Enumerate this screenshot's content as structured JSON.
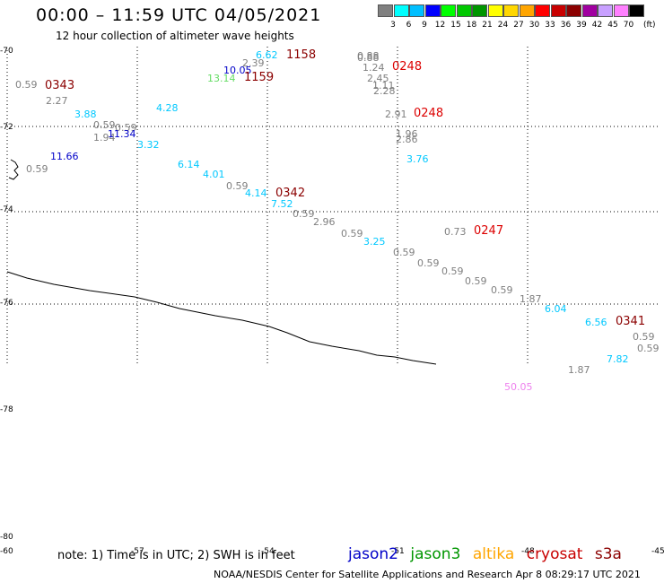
{
  "title": "00:00 – 11:59 UTC 04/05/2021",
  "subtitle": "12 hour collection of altimeter wave heights",
  "scale": {
    "unit": "(ft)",
    "entries": [
      {
        "label": "",
        "color": "#808080"
      },
      {
        "label": "3",
        "color": "#00ffff"
      },
      {
        "label": "6",
        "color": "#00bfff"
      },
      {
        "label": "9",
        "color": "#0000ff"
      },
      {
        "label": "12",
        "color": "#00ff00"
      },
      {
        "label": "15",
        "color": "#00c800"
      },
      {
        "label": "18",
        "color": "#009600"
      },
      {
        "label": "21",
        "color": "#ffff00"
      },
      {
        "label": "24",
        "color": "#ffd700"
      },
      {
        "label": "27",
        "color": "#ffa500"
      },
      {
        "label": "30",
        "color": "#ff0000"
      },
      {
        "label": "33",
        "color": "#c80000"
      },
      {
        "label": "36",
        "color": "#8b0000"
      },
      {
        "label": "39",
        "color": "#a000a0"
      },
      {
        "label": "42",
        "color": "#c8a0ff"
      },
      {
        "label": "45",
        "color": "#ff80ff"
      },
      {
        "label": "70",
        "color": "#000000"
      }
    ]
  },
  "latitude_labels": [
    "-70",
    "-72",
    "-74",
    "-76",
    "-78",
    "-80"
  ],
  "longitude_labels": [
    "-60",
    "-57",
    "-54",
    "-51",
    "-48",
    "-45"
  ],
  "observations": [
    {
      "text": "0.59",
      "color": "#808080"
    },
    {
      "text": "2.27",
      "color": "#808080"
    },
    {
      "text": "3.88",
      "color": "#00c8ff"
    },
    {
      "text": "0.59",
      "color": "#808080"
    },
    {
      "text": "0.59",
      "color": "#808080"
    },
    {
      "text": "1.94",
      "color": "#808080"
    },
    {
      "text": "11.34",
      "color": "#0000c8"
    },
    {
      "text": "3.32",
      "color": "#00c8ff"
    },
    {
      "text": "4.28",
      "color": "#00c8ff"
    },
    {
      "text": "11.66",
      "color": "#0000c8"
    },
    {
      "text": "0.59",
      "color": "#808080"
    },
    {
      "text": "6.14",
      "color": "#00c8ff"
    },
    {
      "text": "4.01",
      "color": "#00c8ff"
    },
    {
      "text": "0.59",
      "color": "#808080"
    },
    {
      "text": "4.14",
      "color": "#00c8ff"
    },
    {
      "text": "7.52",
      "color": "#00c8ff"
    },
    {
      "text": "0.59",
      "color": "#808080"
    },
    {
      "text": "2.96",
      "color": "#808080"
    },
    {
      "text": "0.59",
      "color": "#808080"
    },
    {
      "text": "3.25",
      "color": "#00c8ff"
    },
    {
      "text": "0.59",
      "color": "#808080"
    },
    {
      "text": "0.59",
      "color": "#808080"
    },
    {
      "text": "0.59",
      "color": "#808080"
    },
    {
      "text": "0.59",
      "color": "#808080"
    },
    {
      "text": "0.59",
      "color": "#808080"
    },
    {
      "text": "0.73",
      "color": "#808080"
    },
    {
      "text": "1.87",
      "color": "#808080"
    },
    {
      "text": "6.04",
      "color": "#00c8ff"
    },
    {
      "text": "6.56",
      "color": "#00c8ff"
    },
    {
      "text": "0.59",
      "color": "#808080"
    },
    {
      "text": "0.59",
      "color": "#808080"
    },
    {
      "text": "7.82",
      "color": "#00c8ff"
    },
    {
      "text": "1.87",
      "color": "#808080"
    },
    {
      "text": "50.05",
      "color": "#ee82ee"
    },
    {
      "text": "6.62",
      "color": "#00c8ff"
    },
    {
      "text": "2.39",
      "color": "#808080"
    },
    {
      "text": "10.05",
      "color": "#0000c8"
    },
    {
      "text": "13.14",
      "color": "#64dc64"
    },
    {
      "text": "0.88",
      "color": "#808080"
    },
    {
      "text": "0.88",
      "color": "#808080"
    },
    {
      "text": "1.24",
      "color": "#808080"
    },
    {
      "text": "2.45",
      "color": "#808080"
    },
    {
      "text": "1.11",
      "color": "#808080"
    },
    {
      "text": "2.28",
      "color": "#808080"
    },
    {
      "text": "2.91",
      "color": "#808080"
    },
    {
      "text": "1.96",
      "color": "#808080"
    },
    {
      "text": "2.86",
      "color": "#808080"
    },
    {
      "text": "3.76",
      "color": "#00c8ff"
    }
  ],
  "pass_times": [
    {
      "text": "0343",
      "color": "#8b0000"
    },
    {
      "text": "1158",
      "color": "#8b0000"
    },
    {
      "text": "1159",
      "color": "#8b0000"
    },
    {
      "text": "0248",
      "color": "#dc0000"
    },
    {
      "text": "0248",
      "color": "#dc0000"
    },
    {
      "text": "0342",
      "color": "#8b0000"
    },
    {
      "text": "0247",
      "color": "#dc0000"
    },
    {
      "text": "0341",
      "color": "#8b0000"
    }
  ],
  "note": "note:  1) Time is in UTC;  2) SWH is in feet",
  "satellites": [
    {
      "name": "jason2",
      "color": "#0000c8"
    },
    {
      "name": "jason3",
      "color": "#009600"
    },
    {
      "name": "altika",
      "color": "#ffa500"
    },
    {
      "name": "cryosat",
      "color": "#c80000"
    },
    {
      "name": "s3a",
      "color": "#8b0000"
    }
  ],
  "credit": "NOAA/NESDIS Center for Satellite Applications and Research    Apr  8 08:29:17 UTC 2021"
}
